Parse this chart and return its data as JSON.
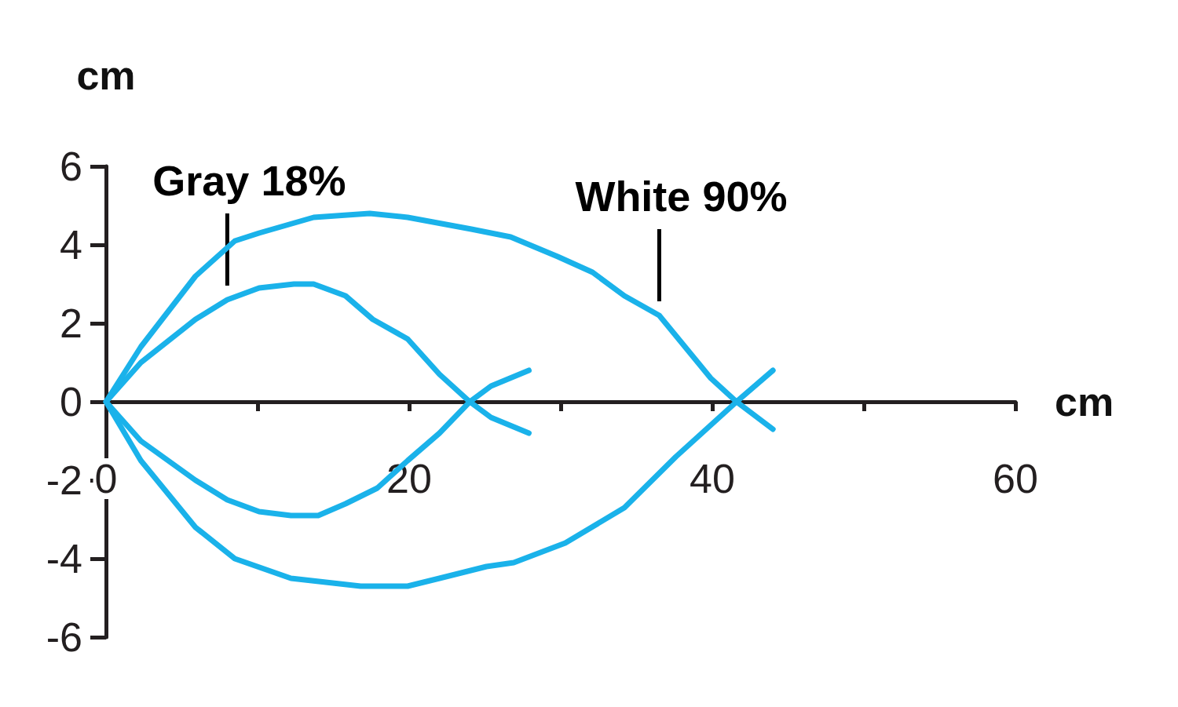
{
  "chart_data": {
    "type": "line",
    "xlabel": "cm",
    "ylabel": "cm",
    "xlim": [
      0,
      60
    ],
    "ylim": [
      -6,
      6
    ],
    "xticks": [
      0,
      {
        "value": 10,
        "label": null
      },
      20,
      {
        "value": 30,
        "label": null
      },
      40,
      {
        "value": 50,
        "label": null
      },
      60
    ],
    "yticks": [
      -6,
      -4,
      -2,
      0,
      2,
      4,
      6
    ],
    "grid": false,
    "marker": "none",
    "line_style": "solid",
    "series": [
      {
        "color": "#1ab2ea",
        "x": [
          27.9,
          25.4,
          24.0,
          22.0,
          19.9,
          17.6,
          15.8,
          13.7,
          12.4,
          10.1,
          8.0,
          5.9,
          2.3,
          0,
          2.3,
          5.9,
          8.0,
          10.1,
          12.2,
          14.0,
          15.8,
          17.9,
          19.9,
          22.0,
          24.0,
          25.4,
          27.9
        ],
        "values": [
          -0.8,
          -0.4,
          0,
          0.7,
          1.6,
          2.1,
          2.7,
          3.0,
          3.0,
          2.9,
          2.6,
          2.1,
          1.0,
          0,
          -1.0,
          -2.0,
          -2.5,
          -2.8,
          -2.9,
          -2.9,
          -2.6,
          -2.2,
          -1.5,
          -0.8,
          0,
          0.4,
          0.8
        ]
      },
      {
        "color": "#1ab2ea",
        "x": [
          44.0,
          41.6,
          39.9,
          36.5,
          34.2,
          32.1,
          29.8,
          26.7,
          24.1,
          19.9,
          17.4,
          13.7,
          10.1,
          8.5,
          5.9,
          2.3,
          0,
          2.3,
          5.9,
          8.5,
          12.2,
          16.8,
          19.9,
          22.0,
          25.1,
          26.9,
          30.3,
          34.2,
          37.6,
          41.6,
          44.0
        ],
        "values": [
          -0.7,
          0,
          0.6,
          2.2,
          2.7,
          3.3,
          3.7,
          4.2,
          4.4,
          4.7,
          4.8,
          4.7,
          4.3,
          4.1,
          3.2,
          1.4,
          0,
          -1.5,
          -3.2,
          -4.0,
          -4.5,
          -4.7,
          -4.7,
          -4.5,
          -4.2,
          -4.1,
          -3.6,
          -2.7,
          -1.4,
          0,
          0.8
        ]
      }
    ],
    "annotations": [
      {
        "text": "Gray 18%",
        "x": 8.0,
        "y": 2.6
      },
      {
        "text": "White 90%",
        "x": 36.5,
        "y": 2.2
      }
    ]
  }
}
